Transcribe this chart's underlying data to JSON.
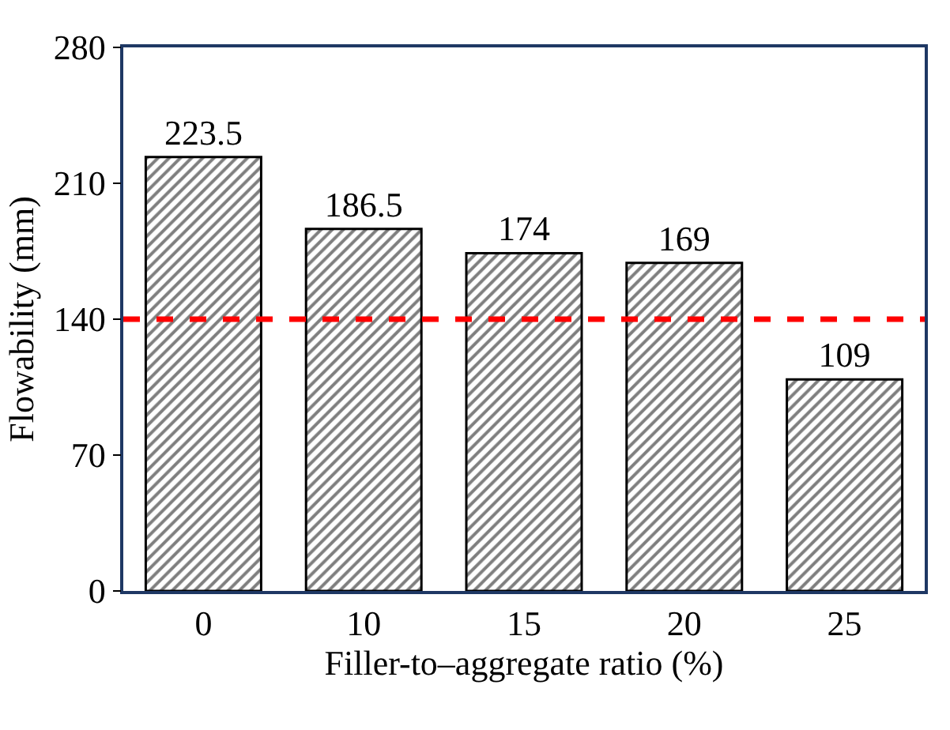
{
  "chart_data": {
    "type": "bar",
    "xlabel": "Filler-to–aggregate ratio (%)",
    "ylabel": "Flowability (mm)",
    "categories": [
      "0",
      "10",
      "15",
      "20",
      "25"
    ],
    "series": [
      {
        "color": "#000000",
        "values": [
          223.5,
          186.5,
          174,
          169,
          109
        ]
      }
    ],
    "ylim": [
      0,
      280
    ],
    "yticks": [
      0,
      70,
      140,
      210,
      280
    ],
    "data_labels": true,
    "ref_lines": [
      {
        "axis": "y",
        "value": 140,
        "color": "#ff0000",
        "line_style": "dashed"
      }
    ]
  }
}
